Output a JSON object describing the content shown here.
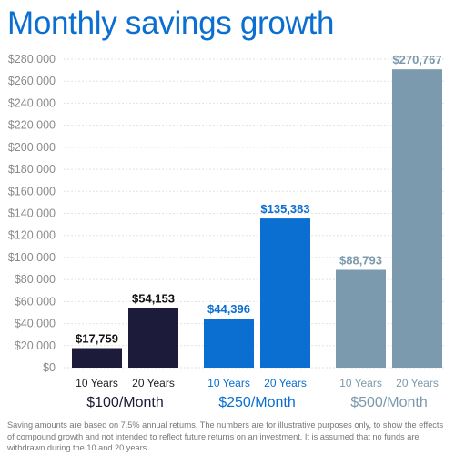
{
  "chart_data": {
    "type": "bar",
    "title": "Monthly savings growth",
    "ylim": [
      0,
      280000
    ],
    "y_ticks": [
      "$0",
      "$20,000",
      "$40,000",
      "$60,000",
      "$80,000",
      "$100,000",
      "$120,000",
      "$140,000",
      "$160,000",
      "$180,000",
      "$200,000",
      "$220,000",
      "$240,000",
      "$260,000",
      "$280,000"
    ],
    "grid": true,
    "groups": [
      {
        "label": "$100/Month",
        "color": "#1c1c3a",
        "bars": [
          {
            "category": "10 Years",
            "value": 17759,
            "label": "$17,759"
          },
          {
            "category": "20 Years",
            "value": 54153,
            "label": "$54,153"
          }
        ]
      },
      {
        "label": "$250/Month",
        "color": "#0a6fd1",
        "bars": [
          {
            "category": "10 Years",
            "value": 44396,
            "label": "$44,396"
          },
          {
            "category": "20 Years",
            "value": 135383,
            "label": "$135,383"
          }
        ]
      },
      {
        "label": "$500/Month",
        "color": "#7b9aad",
        "bars": [
          {
            "category": "10 Years",
            "value": 88793,
            "label": "$88,793"
          },
          {
            "category": "20 Years",
            "value": 270767,
            "label": "$270,767"
          }
        ]
      }
    ]
  },
  "footnote": "Saving amounts are based on 7.5% annual returns. The numbers are for illustrative purposes only, to show the effects of compound growth and not intended to reflect future returns on an investment. It is assumed that no funds are withdrawn during the 10 and 20 years."
}
